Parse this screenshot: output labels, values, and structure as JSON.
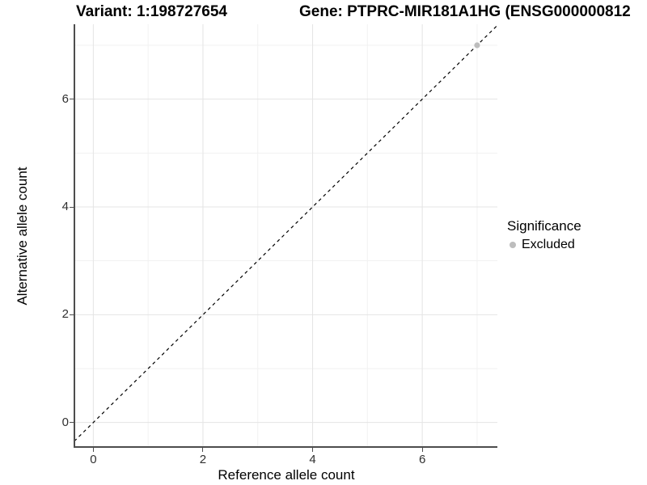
{
  "chart_data": {
    "type": "scatter",
    "title_left": "Variant: 1:198727654",
    "title_right": "Gene: PTPRC-MIR181A1HG (ENSG000000812",
    "xlabel": "Reference allele count",
    "ylabel": "Alternative allele count",
    "x_ticks": [
      0,
      2,
      4,
      6
    ],
    "y_ticks": [
      0,
      2,
      4,
      6
    ],
    "x_minor_ticks": [
      1,
      3,
      5,
      7
    ],
    "y_minor_ticks": [
      1,
      3,
      5,
      7
    ],
    "xlim": [
      -0.33,
      7.37
    ],
    "ylim": [
      -0.44,
      7.39
    ],
    "grid": true,
    "identity_line": {
      "slope": 1,
      "intercept": 0,
      "style": "dashed",
      "color": "#000000"
    },
    "series": [
      {
        "name": "Excluded",
        "color": "#bdbdbd",
        "points": [
          [
            7,
            7
          ]
        ]
      }
    ],
    "legend": {
      "position": "right",
      "title": "Significance",
      "items": [
        {
          "label": "Excluded",
          "color": "#bdbdbd"
        }
      ]
    },
    "colors": {
      "axis_line": "#4d4d4d",
      "grid_major": "#e4e4e4",
      "grid_minor": "#f1f1f1",
      "tick_text": "#303030",
      "background": "#ffffff"
    }
  }
}
